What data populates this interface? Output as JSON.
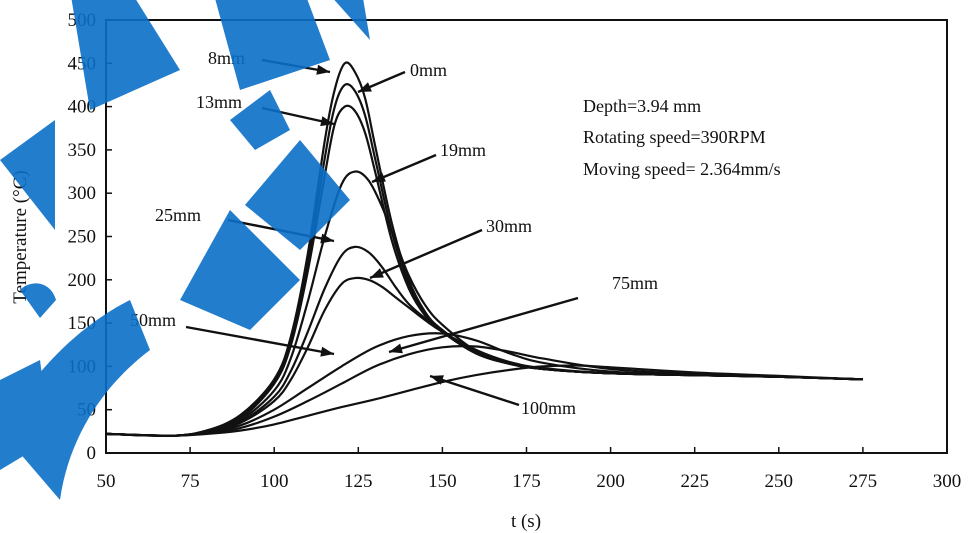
{
  "colors": {
    "curve": "#111111",
    "watermark": "#0b6fc8"
  },
  "watermark_icon": "tech-watermark-logo",
  "chart_data": {
    "type": "line",
    "xlabel": "t (s)",
    "ylabel": "Temperature (°C)",
    "xlim": [
      50,
      300
    ],
    "ylim": [
      0,
      500
    ],
    "x_ticks": [
      50,
      75,
      100,
      125,
      150,
      175,
      200,
      225,
      250,
      275,
      300
    ],
    "y_ticks": [
      0,
      50,
      100,
      150,
      200,
      250,
      300,
      350,
      400,
      450,
      500
    ],
    "grid": false,
    "annotations": [
      "Depth=3.94 mm",
      "Rotating speed=390RPM",
      "Moving speed= 2.364mm/s"
    ],
    "series": [
      {
        "name": "0mm",
        "x": [
          50,
          70,
          80,
          90,
          100,
          105,
          110,
          115,
          118,
          121,
          124,
          127,
          130,
          135,
          140,
          145,
          150,
          160,
          170,
          180,
          200,
          225,
          250,
          275
        ],
        "y": [
          22,
          20,
          26,
          42,
          82,
          130,
          220,
          340,
          400,
          425,
          418,
          390,
          340,
          255,
          195,
          160,
          140,
          115,
          103,
          97,
          92,
          90,
          88,
          85
        ]
      },
      {
        "name": "8mm",
        "x": [
          50,
          70,
          80,
          90,
          100,
          105,
          110,
          115,
          118,
          121,
          124,
          127,
          130,
          135,
          140,
          145,
          150,
          160,
          170,
          180,
          200,
          225,
          250,
          275
        ],
        "y": [
          22,
          20,
          26,
          44,
          85,
          135,
          230,
          360,
          420,
          450,
          440,
          410,
          355,
          265,
          200,
          162,
          142,
          116,
          103,
          97,
          92,
          90,
          88,
          85
        ]
      },
      {
        "name": "13mm",
        "x": [
          50,
          70,
          80,
          90,
          100,
          105,
          110,
          115,
          118,
          121,
          124,
          127,
          130,
          135,
          140,
          145,
          150,
          160,
          170,
          180,
          200,
          225,
          250,
          275
        ],
        "y": [
          22,
          20,
          26,
          40,
          80,
          125,
          210,
          320,
          380,
          400,
          395,
          370,
          325,
          245,
          190,
          158,
          140,
          115,
          103,
          97,
          92,
          90,
          88,
          85
        ]
      },
      {
        "name": "19mm",
        "x": [
          50,
          70,
          80,
          90,
          100,
          105,
          110,
          115,
          120,
          124,
          128,
          132,
          136,
          140,
          145,
          150,
          160,
          170,
          180,
          200,
          225,
          250,
          275
        ],
        "y": [
          22,
          20,
          25,
          38,
          72,
          110,
          175,
          250,
          310,
          325,
          315,
          285,
          245,
          205,
          170,
          148,
          118,
          104,
          97,
          92,
          90,
          88,
          85
        ]
      },
      {
        "name": "25mm",
        "x": [
          50,
          70,
          80,
          90,
          100,
          105,
          110,
          115,
          120,
          124,
          128,
          132,
          136,
          140,
          145,
          150,
          160,
          170,
          180,
          200,
          225,
          250,
          275
        ],
        "y": [
          22,
          20,
          25,
          36,
          65,
          95,
          140,
          190,
          228,
          238,
          232,
          215,
          192,
          172,
          155,
          140,
          118,
          104,
          97,
          92,
          90,
          88,
          85
        ]
      },
      {
        "name": "30mm",
        "x": [
          50,
          70,
          80,
          90,
          100,
          105,
          110,
          115,
          120,
          124,
          128,
          132,
          136,
          140,
          145,
          150,
          160,
          170,
          180,
          200,
          225,
          250,
          275
        ],
        "y": [
          22,
          20,
          25,
          35,
          60,
          85,
          122,
          165,
          195,
          202,
          200,
          192,
          180,
          168,
          153,
          140,
          119,
          105,
          98,
          92,
          90,
          88,
          85
        ]
      },
      {
        "name": "50mm",
        "x": [
          50,
          70,
          80,
          90,
          100,
          110,
          120,
          130,
          140,
          150,
          160,
          170,
          180,
          200,
          225,
          250,
          275
        ],
        "y": [
          22,
          20,
          24,
          32,
          50,
          75,
          100,
          122,
          135,
          138,
          130,
          115,
          104,
          94,
          90,
          88,
          85
        ]
      },
      {
        "name": "75mm",
        "x": [
          50,
          70,
          80,
          90,
          100,
          110,
          120,
          130,
          140,
          150,
          160,
          170,
          180,
          200,
          225,
          250,
          275
        ],
        "y": [
          22,
          20,
          23,
          29,
          42,
          60,
          80,
          100,
          114,
          122,
          123,
          117,
          109,
          97,
          91,
          88,
          85
        ]
      },
      {
        "name": "100mm",
        "x": [
          50,
          70,
          80,
          90,
          100,
          110,
          120,
          130,
          140,
          150,
          160,
          170,
          180,
          190,
          200,
          225,
          250,
          275
        ],
        "y": [
          22,
          20,
          22,
          26,
          33,
          43,
          53,
          62,
          72,
          82,
          90,
          96,
          100,
          101,
          99,
          93,
          89,
          85
        ]
      }
    ],
    "curve_labels": [
      {
        "series": "8mm",
        "text": "8mm"
      },
      {
        "series": "0mm",
        "text": "0mm"
      },
      {
        "series": "13mm",
        "text": "13mm"
      },
      {
        "series": "19mm",
        "text": "19mm"
      },
      {
        "series": "25mm",
        "text": "25mm"
      },
      {
        "series": "30mm",
        "text": "30mm"
      },
      {
        "series": "75mm",
        "text": "75mm"
      },
      {
        "series": "50mm",
        "text": "50mm"
      },
      {
        "series": "100mm",
        "text": "100mm"
      }
    ]
  }
}
